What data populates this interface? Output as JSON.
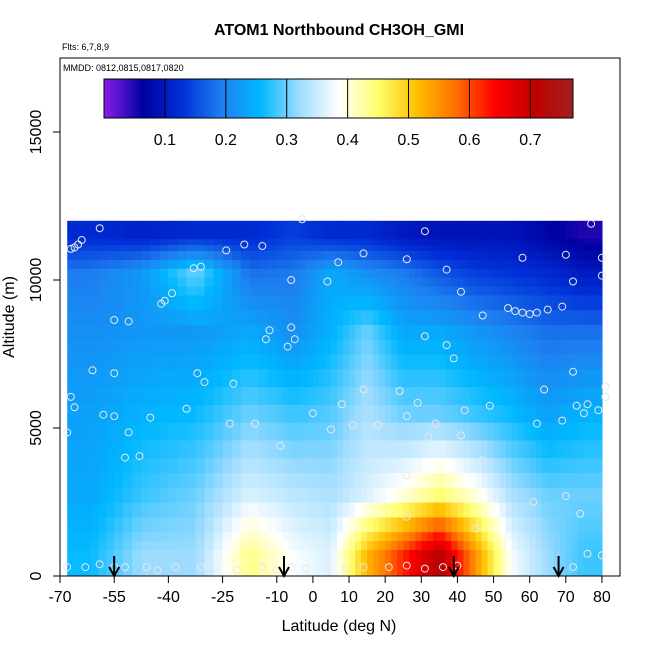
{
  "chart_data": {
    "type": "heatmap",
    "title": "ATOM1 Northbound CH3OH_GMI",
    "flights_note": "Flts: 6,7,8,9",
    "dates_note": "MMDD: 0812,0815,0817,0820",
    "xlabel": "Latitude (deg N)",
    "ylabel": "Altitude (m)",
    "xlim": [
      -70,
      85
    ],
    "ylim": [
      0,
      17500
    ],
    "x_ticks": [
      -70,
      -55,
      -40,
      -25,
      -10,
      0,
      10,
      20,
      30,
      40,
      50,
      60,
      70,
      80
    ],
    "x_tick_labels": [
      "-70",
      "-55",
      "-40",
      "-25",
      "-10",
      "0",
      "10",
      "20",
      "30",
      "40",
      "50",
      "60",
      "70",
      "80"
    ],
    "y_ticks": [
      0,
      5000,
      10000,
      15000
    ],
    "y_tick_labels": [
      "0",
      "5000",
      "10000",
      "15000"
    ],
    "colorbar": {
      "range": [
        0.0,
        0.77
      ],
      "ticks": [
        0.1,
        0.2,
        0.3,
        0.4,
        0.5,
        0.6,
        0.7
      ],
      "tick_labels": [
        "0.1",
        "0.2",
        "0.3",
        "0.4",
        "0.5",
        "0.6",
        "0.7"
      ],
      "colors": [
        "#8a1de8",
        "#0000a0",
        "#0030d8",
        "#1e7ff0",
        "#00b8ff",
        "#9fdcff",
        "#ffffff",
        "#ffff70",
        "#ffc000",
        "#ff7000",
        "#ff0000",
        "#c00000",
        "#a02020"
      ]
    },
    "lat_edges": [
      -68,
      -55,
      -40,
      -25,
      -10,
      0,
      10,
      20,
      30,
      40,
      50,
      60,
      70,
      80
    ],
    "alt_edges": [
      0,
      1500,
      4000,
      7000,
      9500,
      11000,
      12000
    ],
    "grid_values": [
      [
        0.26,
        0.32,
        0.32,
        0.44,
        0.38,
        0.36,
        0.52,
        0.62,
        0.72,
        0.55,
        0.38,
        0.32,
        0.28
      ],
      [
        0.24,
        0.28,
        0.3,
        0.36,
        0.34,
        0.33,
        0.36,
        0.4,
        0.45,
        0.4,
        0.33,
        0.3,
        0.3
      ],
      [
        0.23,
        0.25,
        0.26,
        0.3,
        0.28,
        0.29,
        0.33,
        0.3,
        0.3,
        0.28,
        0.26,
        0.23,
        0.25
      ],
      [
        0.21,
        0.22,
        0.22,
        0.24,
        0.21,
        0.25,
        0.3,
        0.24,
        0.24,
        0.22,
        0.2,
        0.18,
        0.18
      ],
      [
        0.19,
        0.22,
        0.3,
        0.18,
        0.19,
        0.24,
        0.21,
        0.19,
        0.16,
        0.14,
        0.13,
        0.12,
        0.1
      ],
      [
        0.12,
        0.11,
        0.12,
        0.12,
        0.14,
        0.12,
        0.12,
        0.1,
        0.09,
        0.09,
        0.09,
        0.07,
        0.05
      ]
    ],
    "samples": [
      [
        -68,
        300
      ],
      [
        -63,
        300
      ],
      [
        -59,
        400
      ],
      [
        -55,
        300
      ],
      [
        -52,
        300
      ],
      [
        -46,
        300
      ],
      [
        -43,
        200
      ],
      [
        -38,
        300
      ],
      [
        -31,
        300
      ],
      [
        -27,
        300
      ],
      [
        -21,
        200
      ],
      [
        -14,
        300
      ],
      [
        -10,
        200
      ],
      [
        -6,
        300
      ],
      [
        -2,
        250
      ],
      [
        4,
        300
      ],
      [
        9,
        250
      ],
      [
        14,
        300
      ],
      [
        21,
        300
      ],
      [
        26,
        350
      ],
      [
        31,
        250
      ],
      [
        36,
        300
      ],
      [
        40,
        350
      ],
      [
        72,
        300
      ],
      [
        76,
        750
      ],
      [
        80,
        700
      ],
      [
        70,
        2700
      ],
      [
        74,
        2100
      ],
      [
        61,
        2500
      ],
      [
        45,
        1600
      ],
      [
        26,
        2000
      ],
      [
        26,
        3400
      ],
      [
        -52,
        4000
      ],
      [
        -48,
        4050
      ],
      [
        -68,
        4850
      ],
      [
        -51,
        4850
      ],
      [
        -66,
        5700
      ],
      [
        -58,
        5450
      ],
      [
        -55,
        5400
      ],
      [
        -45,
        5350
      ],
      [
        -35,
        5650
      ],
      [
        -23,
        5150
      ],
      [
        -16,
        5150
      ],
      [
        -9,
        4400
      ],
      [
        0,
        5500
      ],
      [
        5,
        4950
      ],
      [
        8,
        5800
      ],
      [
        11,
        5100
      ],
      [
        14,
        6300
      ],
      [
        18,
        5100
      ],
      [
        24,
        6250
      ],
      [
        26,
        5400
      ],
      [
        29,
        5850
      ],
      [
        32,
        4700
      ],
      [
        34,
        5150
      ],
      [
        41,
        4750
      ],
      [
        42,
        5600
      ],
      [
        47,
        3900
      ],
      [
        49,
        5750
      ],
      [
        62,
        5150
      ],
      [
        64,
        6300
      ],
      [
        69,
        5250
      ],
      [
        73,
        5750
      ],
      [
        75,
        5500
      ],
      [
        76,
        5800
      ],
      [
        79,
        5600
      ],
      [
        81,
        6050
      ],
      [
        81,
        6400
      ],
      [
        -67,
        6050
      ],
      [
        -61,
        6950
      ],
      [
        -55,
        6850
      ],
      [
        -32,
        6850
      ],
      [
        -30,
        6550
      ],
      [
        -22,
        6500
      ],
      [
        -7,
        7750
      ],
      [
        -5,
        8000
      ],
      [
        -13,
        8000
      ],
      [
        -12,
        8300
      ],
      [
        -6,
        8400
      ],
      [
        31,
        8100
      ],
      [
        37,
        7800
      ],
      [
        39,
        7350
      ],
      [
        72,
        6900
      ],
      [
        -55,
        8650
      ],
      [
        -51,
        8600
      ],
      [
        -42,
        9200
      ],
      [
        -41,
        9300
      ],
      [
        -39,
        9550
      ],
      [
        -33,
        10400
      ],
      [
        -31,
        10450
      ],
      [
        -6,
        10000
      ],
      [
        4,
        9950
      ],
      [
        41,
        9600
      ],
      [
        47,
        8800
      ],
      [
        54,
        9050
      ],
      [
        56,
        8950
      ],
      [
        58,
        8900
      ],
      [
        60,
        8850
      ],
      [
        62,
        8900
      ],
      [
        65,
        9000
      ],
      [
        69,
        9100
      ],
      [
        72,
        9950
      ],
      [
        80,
        10750
      ],
      [
        80,
        10150
      ],
      [
        -67,
        11050
      ],
      [
        -66,
        11100
      ],
      [
        -65,
        11200
      ],
      [
        -64,
        11350
      ],
      [
        -59,
        11750
      ],
      [
        -24,
        11000
      ],
      [
        -19,
        11200
      ],
      [
        -14,
        11150
      ],
      [
        7,
        10600
      ],
      [
        14,
        10900
      ],
      [
        26,
        10700
      ],
      [
        31,
        11650
      ],
      [
        37,
        10350
      ],
      [
        58,
        10750
      ],
      [
        70,
        10850
      ],
      [
        77,
        11900
      ],
      [
        -3,
        12050
      ]
    ],
    "flight_markers_lat": [
      -55,
      -8,
      39,
      68
    ]
  }
}
